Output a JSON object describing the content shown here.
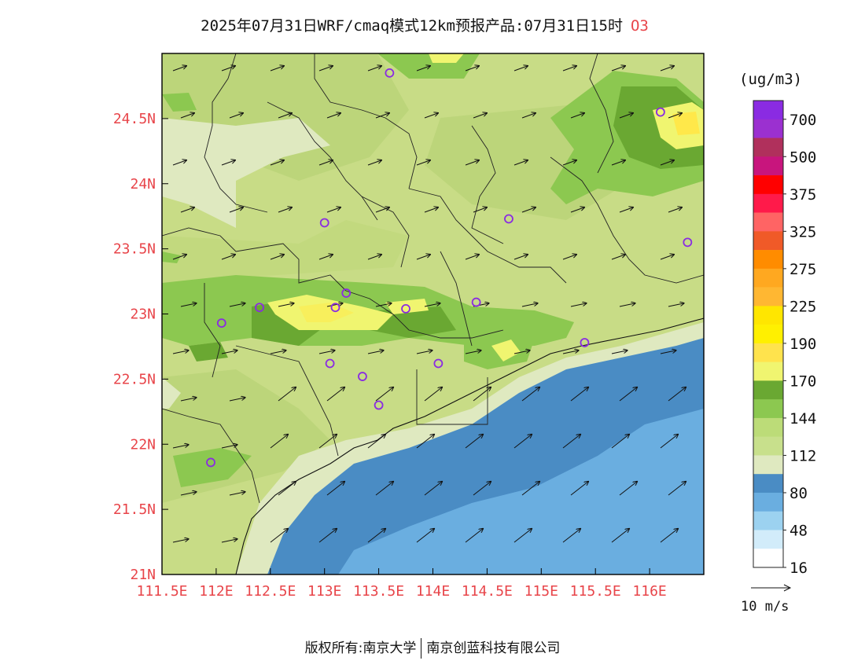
{
  "title": {
    "main": "2025年07月31日WRF/cmaq模式12km预报产品:07月31日15时",
    "pollutant": "O3"
  },
  "map": {
    "lon_range": [
      111.5,
      116.5
    ],
    "lat_range": [
      21.0,
      25.0
    ],
    "x_tick_labels": [
      "111.5E",
      "112E",
      "112.5E",
      "113E",
      "113.5E",
      "114E",
      "114.5E",
      "115E",
      "115.5E",
      "116E"
    ],
    "y_tick_labels": [
      "21N",
      "21.5N",
      "22N",
      "22.5N",
      "23N",
      "23.5N",
      "24N",
      "24.5N"
    ],
    "tick_label_color": "#e8454a",
    "station_markers": [
      {
        "lon": 113.6,
        "lat": 24.85
      },
      {
        "lon": 116.1,
        "lat": 24.55
      },
      {
        "lon": 113.0,
        "lat": 23.7
      },
      {
        "lon": 114.7,
        "lat": 23.73
      },
      {
        "lon": 116.35,
        "lat": 23.55
      },
      {
        "lon": 112.4,
        "lat": 23.05
      },
      {
        "lon": 113.1,
        "lat": 23.05
      },
      {
        "lon": 113.2,
        "lat": 23.16
      },
      {
        "lon": 113.75,
        "lat": 23.04
      },
      {
        "lon": 114.4,
        "lat": 23.09
      },
      {
        "lon": 112.05,
        "lat": 22.93
      },
      {
        "lon": 115.4,
        "lat": 22.78
      },
      {
        "lon": 113.05,
        "lat": 22.62
      },
      {
        "lon": 113.35,
        "lat": 22.52
      },
      {
        "lon": 114.05,
        "lat": 22.62
      },
      {
        "lon": 113.5,
        "lat": 22.3
      },
      {
        "lon": 111.95,
        "lat": 21.86
      }
    ]
  },
  "legend": {
    "unit": "(ug/m3)",
    "labels": [
      "700",
      "500",
      "375",
      "325",
      "275",
      "225",
      "190",
      "170",
      "144",
      "112",
      "80",
      "48",
      "16"
    ],
    "colors": [
      "#8a2be2",
      "#9b30d0",
      "#b0305c",
      "#c8157d",
      "#ff0000",
      "#ff1a4a",
      "#ff6464",
      "#f05a28",
      "#ff8c00",
      "#ffa820",
      "#ffb732",
      "#ffe600",
      "#fff000",
      "#ffe34d",
      "#f0f570",
      "#6aa832",
      "#8cc850",
      "#bcdc78",
      "#c8e08c",
      "#dfe9c0",
      "#4a8cc4",
      "#6aaee0",
      "#9cd2f0",
      "#d2ecfa",
      "#ffffff"
    ]
  },
  "wind_reference": {
    "label": "10 m/s"
  },
  "footer": {
    "left": "版权所有:南京大学",
    "right": "南京创蓝科技有限公司"
  }
}
